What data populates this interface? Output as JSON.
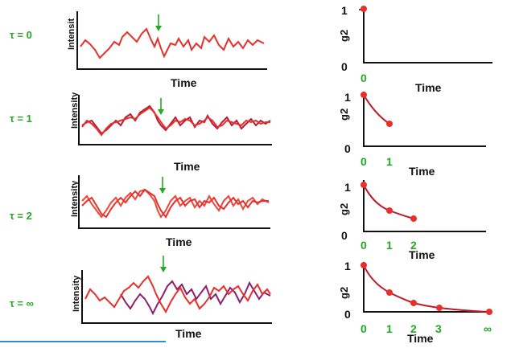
{
  "rows": [
    {
      "tau_label": "τ = 0",
      "trace": {
        "xlabel": "Time",
        "ylabel": "Intensit"
      },
      "g2": {
        "ylabel": "g2",
        "y_ticks": [
          "1",
          "0"
        ],
        "x_ticks": [
          "0"
        ],
        "xlabel": "Time",
        "points": [
          [
            0,
            1
          ]
        ]
      }
    },
    {
      "tau_label": "τ = 1",
      "trace": {
        "xlabel": "Time",
        "ylabel": "Intensity"
      },
      "g2": {
        "ylabel": "g2",
        "y_ticks": [
          "1",
          "0"
        ],
        "x_ticks": [
          "0",
          "1"
        ],
        "xlabel": "Time",
        "points": [
          [
            0,
            1
          ],
          [
            1,
            0.45
          ]
        ]
      }
    },
    {
      "tau_label": "τ = 2",
      "trace": {
        "xlabel": "Time",
        "ylabel": "Intensity"
      },
      "g2": {
        "ylabel": "g2",
        "y_ticks": [
          "1",
          "0"
        ],
        "x_ticks": [
          "0",
          "1",
          "2"
        ],
        "xlabel": "Time",
        "points": [
          [
            0,
            1
          ],
          [
            1,
            0.45
          ],
          [
            2,
            0.2
          ]
        ]
      }
    },
    {
      "tau_label": "τ = ∞",
      "trace": {
        "xlabel": "Time",
        "ylabel": "Intensity"
      },
      "g2": {
        "ylabel": "g2",
        "y_ticks": [
          "1",
          "0"
        ],
        "x_ticks": [
          "0",
          "1",
          "2",
          "3",
          "∞"
        ],
        "xlabel": "Time",
        "points": [
          [
            0,
            1
          ],
          [
            1,
            0.45
          ],
          [
            2,
            0.2
          ],
          [
            3,
            0.1
          ],
          [
            5,
            0.0
          ]
        ]
      }
    }
  ],
  "colors": {
    "trace": "#e8302b",
    "trace_shifted": "#b01e3c",
    "tau_label": "#22aa22",
    "arrow": "#22aa22",
    "curve": "#c0182a",
    "divider": "#2a8fcf"
  }
}
